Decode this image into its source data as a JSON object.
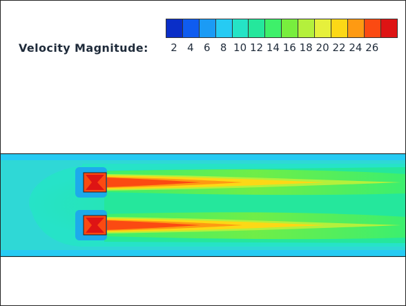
{
  "legend": {
    "title": "Velocity Magnitude:",
    "ticks": [
      "2",
      "4",
      "6",
      "8",
      "10",
      "12",
      "14",
      "16",
      "18",
      "20",
      "22",
      "24",
      "26"
    ],
    "colors": [
      "#0a2ec8",
      "#0f5cf0",
      "#1b9bf5",
      "#26cbf3",
      "#25e4c6",
      "#25e79c",
      "#3ef06a",
      "#78ee3e",
      "#b4f03c",
      "#e6f03c",
      "#fcd816",
      "#fe9a12",
      "#fb4a12",
      "#de1414"
    ]
  },
  "field": {
    "background_color": "#2fd8d6",
    "channel_color": "#38e0a4",
    "jet_core_color": "#fb4a12",
    "jet_mid_color": "#fcd816",
    "jet_outer_color": "#78ee3e",
    "inlet_color": "#1b9bf5",
    "nozzle_count": 2
  }
}
